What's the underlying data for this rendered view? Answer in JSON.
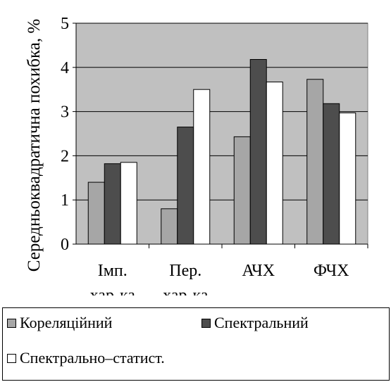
{
  "chart_data": {
    "type": "bar",
    "categories": [
      [
        "Імп.",
        "хар-ка"
      ],
      [
        "Пер.",
        "хар-ка"
      ],
      [
        "АЧХ"
      ],
      [
        "ФЧХ"
      ]
    ],
    "series": [
      {
        "name": "Кореляційний",
        "values": [
          1.4,
          0.8,
          2.43,
          3.73
        ],
        "color": "#a6a6a6"
      },
      {
        "name": "Спектральний",
        "values": [
          1.82,
          2.65,
          4.18,
          3.18
        ],
        "color": "#4d4d4d"
      },
      {
        "name": "Спектрально–статист.",
        "values": [
          1.85,
          3.5,
          3.67,
          2.97
        ],
        "color": "#ffffff"
      }
    ],
    "ylabel": "Середньоквадратична похибка, %",
    "ylim": [
      0,
      5
    ],
    "yticks": [
      "0",
      "1",
      "2",
      "3",
      "4",
      "5"
    ],
    "grid": true,
    "plot_background": "#c0c0c0",
    "legend_position": "bottom"
  }
}
